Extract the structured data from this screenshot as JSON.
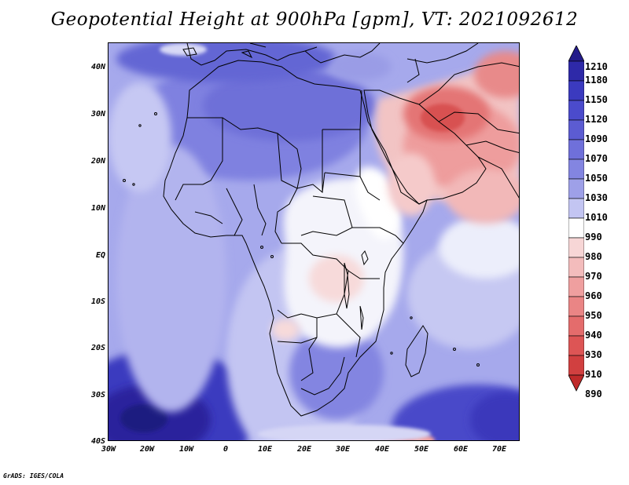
{
  "title": "Geopotential Height at 900hPa [gpm], VT: 2021092612",
  "footer": "GrADS: IGES/COLA",
  "map": {
    "lat_labels": [
      "40N",
      "30N",
      "20N",
      "10N",
      "EQ",
      "10S",
      "20S",
      "30S",
      "40S"
    ],
    "lon_labels": [
      "30W",
      "20W",
      "10W",
      "0",
      "10E",
      "20E",
      "30E",
      "40E",
      "50E",
      "60E",
      "70E"
    ]
  },
  "colorbar": {
    "levels": [
      "1210",
      "1180",
      "1150",
      "1120",
      "1090",
      "1070",
      "1050",
      "1030",
      "1010",
      "990",
      "980",
      "970",
      "960",
      "950",
      "940",
      "930",
      "910",
      "890"
    ],
    "colors": [
      "#241c8a",
      "#2e29a8",
      "#3b3abf",
      "#4b4bcc",
      "#5c5cd2",
      "#6f70da",
      "#8385e1",
      "#9ea0e8",
      "#c3c5f2",
      "#ffffff",
      "#f7d6d6",
      "#f3bcbc",
      "#ef9f9f",
      "#ea8585",
      "#e46c6c",
      "#dd5555",
      "#d14040",
      "#bf2a2a"
    ]
  }
}
